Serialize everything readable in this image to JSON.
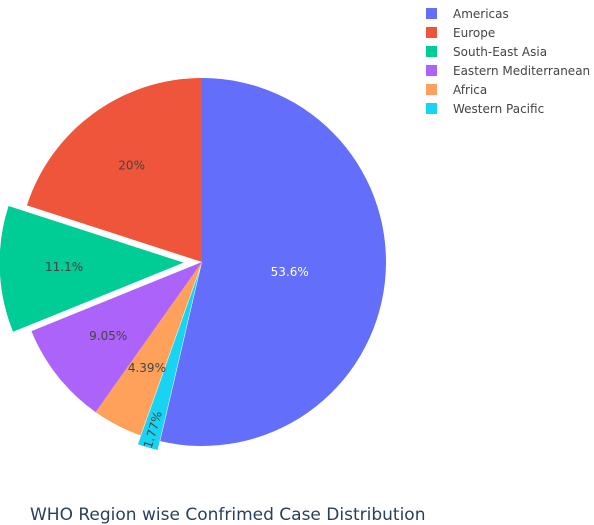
{
  "chart_data": {
    "type": "pie",
    "title": "WHO Region wise Confrimed Case Distribution",
    "slices": [
      {
        "name": "Americas",
        "percent": 53.6,
        "label": "53.6%",
        "color": "#636efa",
        "label_color": "#ffffff",
        "pull": 0
      },
      {
        "name": "Western Pacific",
        "percent": 1.77,
        "label": "1.77%",
        "color": "#19d3f3",
        "label_color": "#444444",
        "pull": 0.05
      },
      {
        "name": "Africa",
        "percent": 4.39,
        "label": "4.39%",
        "color": "#ffa15a",
        "label_color": "#444444",
        "pull": 0
      },
      {
        "name": "Eastern Mediterranean",
        "percent": 9.05,
        "label": "9.05%",
        "color": "#ab63fa",
        "label_color": "#444444",
        "pull": 0
      },
      {
        "name": "South-East Asia",
        "percent": 11.1,
        "label": "11.1%",
        "color": "#00cc96",
        "label_color": "#444444",
        "pull": 0.1
      },
      {
        "name": "Europe",
        "percent": 20,
        "label": "20%",
        "color": "#ef553b",
        "label_color": "#444444",
        "pull": 0
      }
    ],
    "legend": [
      {
        "name": "Americas",
        "color": "#636efa"
      },
      {
        "name": "Europe",
        "color": "#ef553b"
      },
      {
        "name": "South-East Asia",
        "color": "#00cc96"
      },
      {
        "name": "Eastern Mediterranean",
        "color": "#ab63fa"
      },
      {
        "name": "Africa",
        "color": "#ffa15a"
      },
      {
        "name": "Western Pacific",
        "color": "#19d3f3"
      }
    ],
    "legend_position": "top-right",
    "direction": "clockwise",
    "start": "top"
  }
}
